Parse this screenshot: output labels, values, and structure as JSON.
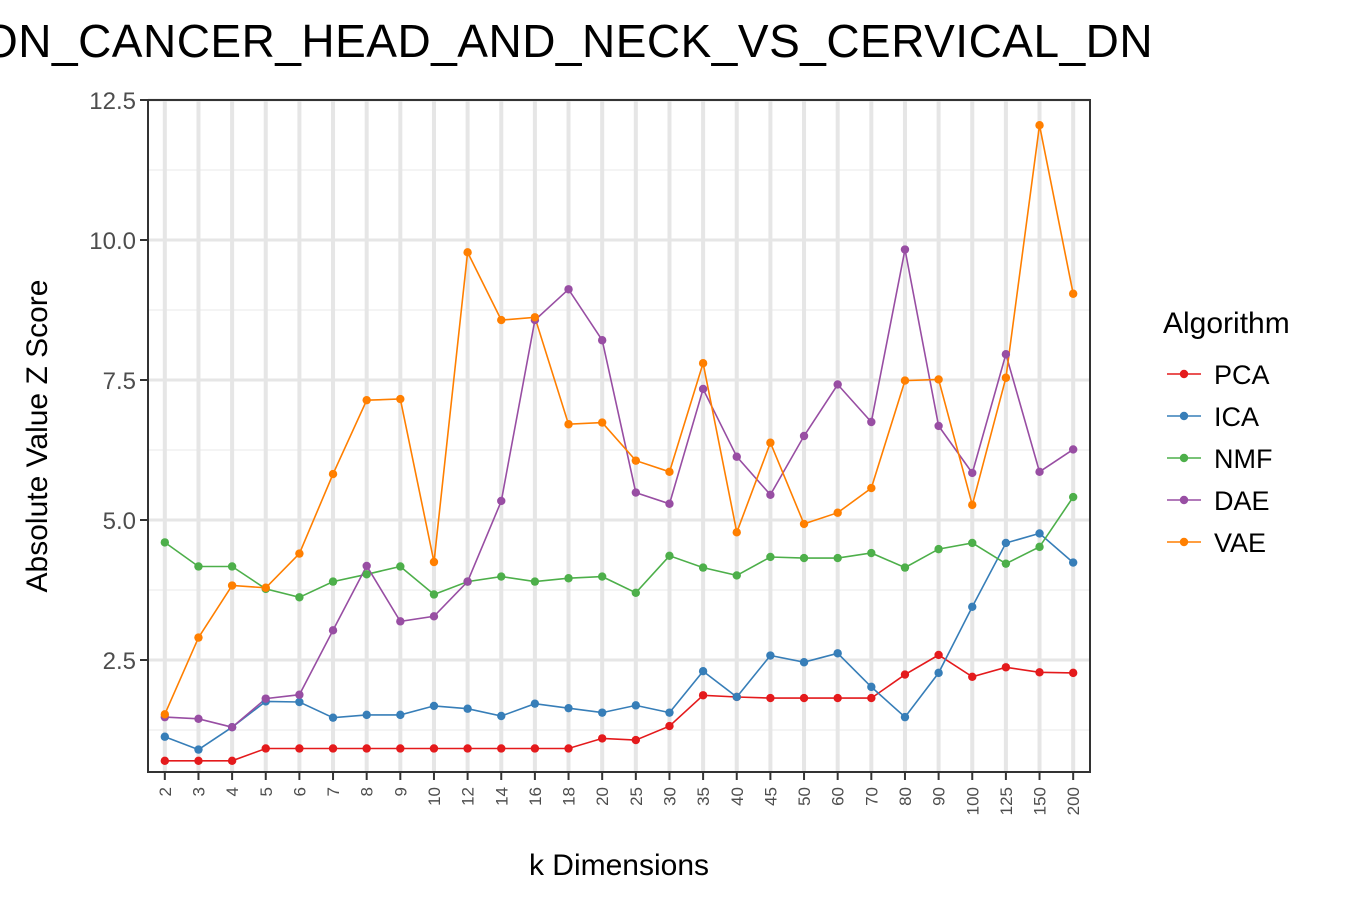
{
  "chart_data": {
    "type": "line",
    "title": "ON_CANCER_HEAD_AND_NECK_VS_CERVICAL_DN",
    "xlabel": "k Dimensions",
    "ylabel": "Absolute Value Z Score",
    "categories": [
      "2",
      "3",
      "4",
      "5",
      "6",
      "7",
      "8",
      "9",
      "10",
      "12",
      "14",
      "16",
      "18",
      "20",
      "25",
      "30",
      "35",
      "40",
      "45",
      "50",
      "60",
      "70",
      "80",
      "90",
      "100",
      "125",
      "150",
      "200"
    ],
    "ylim": [
      0.5,
      12.5
    ],
    "yticks": [
      2.5,
      5.0,
      7.5,
      10.0,
      12.5
    ],
    "ytick_labels": [
      "2.5",
      "5.0",
      "7.5",
      "10.0",
      "12.5"
    ],
    "grid": true,
    "legend_title": "Algorithm",
    "legend_position": "right",
    "series": [
      {
        "name": "PCA",
        "color": "#e41a1c",
        "values": [
          0.7,
          0.7,
          0.7,
          0.92,
          0.92,
          0.92,
          0.92,
          0.92,
          0.92,
          0.92,
          0.92,
          0.92,
          0.92,
          1.1,
          1.07,
          1.32,
          1.87,
          1.84,
          1.82,
          1.82,
          1.82,
          1.82,
          2.24,
          2.59,
          2.2,
          2.37,
          2.28,
          2.27
        ]
      },
      {
        "name": "ICA",
        "color": "#377eb8",
        "values": [
          1.13,
          0.9,
          1.3,
          1.76,
          1.75,
          1.47,
          1.52,
          1.52,
          1.68,
          1.63,
          1.5,
          1.72,
          1.64,
          1.56,
          1.69,
          1.56,
          2.3,
          1.84,
          2.58,
          2.46,
          2.62,
          2.02,
          1.48,
          2.27,
          3.45,
          4.59,
          4.76,
          4.24
        ]
      },
      {
        "name": "NMF",
        "color": "#4daf4a",
        "values": [
          4.6,
          4.17,
          4.17,
          3.77,
          3.62,
          3.9,
          4.03,
          4.17,
          3.67,
          3.9,
          3.99,
          3.9,
          3.96,
          3.99,
          3.7,
          4.36,
          4.15,
          4.01,
          4.34,
          4.32,
          4.32,
          4.41,
          4.15,
          4.48,
          4.59,
          4.22,
          4.52,
          5.41
        ]
      },
      {
        "name": "DAE",
        "color": "#984ea3",
        "values": [
          1.48,
          1.45,
          1.3,
          1.81,
          1.88,
          3.03,
          4.18,
          3.19,
          3.28,
          3.9,
          5.34,
          8.57,
          9.12,
          8.21,
          5.49,
          5.29,
          7.34,
          6.13,
          5.45,
          6.5,
          7.42,
          6.75,
          9.83,
          6.68,
          5.84,
          7.96,
          5.86,
          6.26
        ]
      },
      {
        "name": "VAE",
        "color": "#ff7f00",
        "values": [
          1.53,
          2.9,
          3.83,
          3.79,
          4.4,
          5.82,
          7.14,
          7.16,
          4.25,
          9.78,
          8.57,
          8.62,
          6.71,
          6.74,
          6.06,
          5.86,
          7.8,
          4.78,
          6.38,
          4.93,
          5.13,
          5.57,
          7.49,
          7.51,
          5.27,
          7.54,
          12.05,
          9.04
        ]
      }
    ]
  }
}
